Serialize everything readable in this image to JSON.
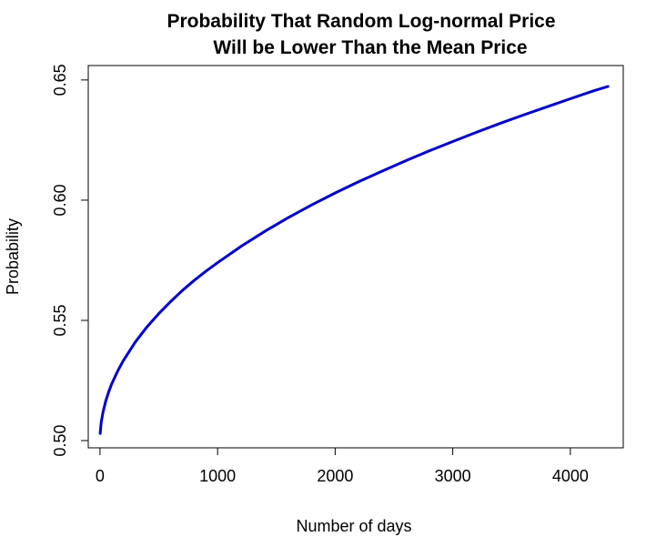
{
  "chart_data": {
    "type": "line",
    "title_line1": "Probability That Random Log-normal Price",
    "title_line2": "Will be Lower Than the Mean Price",
    "xlabel": "Number of days",
    "ylabel": "Probability",
    "xlim": [
      -100,
      4450
    ],
    "ylim": [
      0.497,
      0.656
    ],
    "xticks": [
      0,
      1000,
      2000,
      3000,
      4000
    ],
    "xtick_labels": [
      "0",
      "1000",
      "2000",
      "3000",
      "4000"
    ],
    "yticks": [
      0.5,
      0.55,
      0.6,
      0.65
    ],
    "ytick_labels": [
      "0.50",
      "0.55",
      "0.60",
      "0.65"
    ],
    "grid": false,
    "series": [
      {
        "color": "#0000CD",
        "x": [
          1,
          10,
          25,
          50,
          75,
          100,
          150,
          200,
          300,
          400,
          500,
          600,
          700,
          800,
          900,
          1000,
          1200,
          1400,
          1600,
          1800,
          2000,
          2200,
          2400,
          2600,
          2800,
          3000,
          3200,
          3400,
          3600,
          3800,
          4000,
          4200,
          4320
        ],
        "y": [
          0.503,
          0.5075,
          0.5118,
          0.5167,
          0.5204,
          0.5236,
          0.5289,
          0.5334,
          0.541,
          0.5473,
          0.5528,
          0.5578,
          0.5624,
          0.5666,
          0.5704,
          0.574,
          0.5808,
          0.587,
          0.5927,
          0.598,
          0.603,
          0.6077,
          0.6121,
          0.6164,
          0.6205,
          0.6244,
          0.6282,
          0.6319,
          0.6354,
          0.6388,
          0.6422,
          0.6455,
          0.6473
        ]
      }
    ]
  }
}
